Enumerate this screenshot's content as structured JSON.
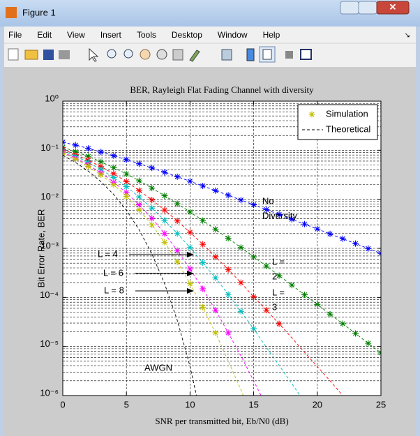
{
  "window": {
    "title": "Figure 1",
    "menu": [
      "File",
      "Edit",
      "View",
      "Insert",
      "Tools",
      "Desktop",
      "Window",
      "Help"
    ]
  },
  "chart_data": {
    "type": "line",
    "title": "BER, Rayleigh Flat Fading Channel with diversity",
    "xlabel": "SNR per transmitted bit, Eb/N0 (dB)",
    "ylabel": "Bit Error Rate, BER",
    "x": [
      0,
      1,
      2,
      3,
      4,
      5,
      6,
      7,
      8,
      9,
      10,
      11,
      12,
      13,
      14,
      15,
      16,
      17,
      18,
      19,
      20,
      21,
      22,
      23,
      24,
      25
    ],
    "xlim": [
      0,
      25
    ],
    "xticks": [
      0,
      5,
      10,
      15,
      20,
      25
    ],
    "ylim": [
      1e-06,
      1
    ],
    "log_y": true,
    "grid": true,
    "minor_grid": true,
    "yticks": [
      {
        "value": 1,
        "label": "10⁰"
      },
      {
        "value": 0.1,
        "label": "10⁻¹"
      },
      {
        "value": 0.01,
        "label": "10⁻²"
      },
      {
        "value": 0.001,
        "label": "10⁻³"
      },
      {
        "value": 0.0001,
        "label": "10⁻⁴"
      },
      {
        "value": 1e-05,
        "label": "10⁻⁵"
      },
      {
        "value": 1e-06,
        "label": "10⁻⁶"
      }
    ],
    "legend": {
      "position": "upper right",
      "entries": [
        {
          "label": "Simulation",
          "color": "#bfbf00",
          "style": "marker"
        },
        {
          "label": "Theoretical",
          "color": "#000000",
          "style": "dashed"
        }
      ]
    },
    "series": [
      {
        "color": "#0000ff",
        "theory": [
          0.146,
          0.127,
          0.109,
          0.0919,
          0.0771,
          0.0642,
          0.053,
          0.0435,
          0.0355,
          0.0288,
          0.0233,
          0.0187,
          0.015,
          0.0121,
          0.00966,
          0.00772,
          0.00616,
          0.00491,
          0.00391,
          0.00312,
          0.00248,
          0.00197,
          0.00157,
          0.00125,
          0.00099,
          0.00079
        ],
        "simulation": [
          0.146,
          0.127,
          0.109,
          0.0919,
          0.0771,
          0.0642,
          0.053,
          0.0435,
          0.0355,
          0.0288,
          0.0233,
          0.0187,
          0.015,
          0.0121,
          0.00966,
          0.00772,
          0.00616,
          0.00491,
          0.00391,
          0.00312,
          0.00248,
          0.00197,
          0.00157,
          0.00125,
          0.00099,
          0.00079
        ]
      },
      {
        "color": "#008000",
        "theory": [
          0.115,
          0.0937,
          0.0747,
          0.058,
          0.0441,
          0.0328,
          0.0238,
          0.0169,
          0.0118,
          0.00813,
          0.00551,
          0.00369,
          0.00244,
          0.0016,
          0.00104,
          0.000668,
          0.000436,
          0.000278,
          0.000178,
          0.000113,
          7.21e-05,
          4.57e-05,
          2.91e-05,
          1.84e-05,
          1.16e-05,
          7.4e-06
        ],
        "simulation": [
          0.115,
          0.0937,
          0.0747,
          0.058,
          0.0441,
          0.0328,
          0.0238,
          0.0169,
          0.0118,
          0.00813,
          0.00551,
          0.00369,
          0.00244,
          0.0016,
          0.00104,
          0.000668,
          0.000436,
          0.000278,
          0.000178,
          0.000113,
          7.21e-05,
          4.57e-05,
          2.91e-05,
          1.84e-05,
          1.16e-05,
          7.4e-06
        ]
      },
      {
        "color": "#ff0000",
        "theory": [
          0.1035,
          0.0819,
          0.0626,
          0.0464,
          0.0331,
          0.0228,
          0.0151,
          0.0097,
          0.00603,
          0.00362,
          0.00212,
          0.00121,
          0.00067,
          0.00037,
          0.0002,
          0.000103,
          5.5e-05,
          2.9e-05,
          1.5e-05,
          7.6e-06,
          3.9e-06,
          2e-06,
          1e-06,
          null,
          null,
          null
        ],
        "simulation": [
          0.1035,
          0.0819,
          0.0626,
          0.0464,
          0.0331,
          0.0228,
          0.0151,
          0.0097,
          0.00603,
          0.00362,
          0.00212,
          0.00121,
          0.00067,
          0.00037,
          0.0002,
          0.000103,
          5.5e-05,
          2.9e-05,
          null,
          null,
          null,
          null,
          null,
          null,
          null,
          null
        ]
      },
      {
        "color": "#00bfbf",
        "theory": [
          0.0975,
          0.0757,
          0.0564,
          0.0404,
          0.0277,
          0.0181,
          0.0112,
          0.0066,
          0.0037,
          0.002,
          0.00104,
          0.00051,
          0.00025,
          0.000115,
          5.2e-05,
          2.3e-05,
          9.6e-06,
          4.1e-06,
          1.75e-06,
          7.3e-07,
          null,
          null,
          null,
          null,
          null,
          null
        ],
        "simulation": [
          0.0975,
          0.0757,
          0.0564,
          0.0404,
          0.0277,
          0.0181,
          0.0112,
          0.0066,
          0.0037,
          0.002,
          0.00104,
          0.00051,
          0.00025,
          0.000115,
          5.2e-05,
          2.3e-05,
          null,
          null,
          null,
          null,
          null,
          null,
          null,
          null,
          null,
          null
        ]
      },
      {
        "color": "#ff00ff",
        "theory": [
          0.0914,
          0.0693,
          0.0501,
          0.0345,
          0.0223,
          0.0136,
          0.0077,
          0.0041,
          0.002,
          0.0009,
          0.00038,
          0.00015,
          5.5e-05,
          1.9e-05,
          6.4e-06,
          2e-06,
          6e-07,
          null,
          null,
          null,
          null,
          null,
          null,
          null,
          null,
          null
        ],
        "simulation": [
          0.0914,
          0.0693,
          0.0501,
          0.0345,
          0.0223,
          0.0136,
          0.0077,
          0.0041,
          0.002,
          0.0009,
          0.00038,
          0.00015,
          5.5e-05,
          1.9e-05,
          null,
          null,
          null,
          null,
          null,
          null,
          null,
          null,
          null,
          null,
          null,
          null
        ]
      },
      {
        "color": "#bfbf00",
        "theory": [
          0.0882,
          0.066,
          0.047,
          0.0315,
          0.0198,
          0.0115,
          0.0061,
          0.003,
          0.00133,
          0.00053,
          0.00019,
          6.3e-05,
          1.9e-05,
          5.1e-06,
          1.3e-06,
          3e-07,
          null,
          null,
          null,
          null,
          null,
          null,
          null,
          null,
          null,
          null
        ],
        "simulation": [
          0.0882,
          0.066,
          0.047,
          0.0315,
          0.0198,
          0.0115,
          0.0061,
          0.003,
          0.00133,
          0.00053,
          0.00019,
          6.3e-05,
          1.9e-05,
          null,
          null,
          null,
          null,
          null,
          null,
          null,
          null,
          null,
          null,
          null,
          null,
          null
        ]
      },
      {
        "color": "#000000",
        "theory": [
          0.0786,
          0.0563,
          0.0375,
          0.0229,
          0.0125,
          0.00595,
          0.00239,
          0.00077,
          0.00019,
          3.4e-05,
          3.9e-06,
          2.6e-07,
          null,
          null,
          null,
          null,
          null,
          null,
          null,
          null,
          null,
          null,
          null,
          null,
          null,
          null
        ]
      }
    ],
    "annotations": [
      {
        "lines": [
          "No",
          "Diversity"
        ]
      },
      {
        "lines": [
          "L =",
          "2"
        ]
      },
      {
        "lines": [
          "L =",
          "3"
        ]
      },
      {
        "lines": [
          "L = 4"
        ]
      },
      {
        "lines": [
          "L = 6"
        ]
      },
      {
        "lines": [
          "L = 8"
        ]
      },
      {
        "lines": [
          "AWGN"
        ]
      }
    ]
  }
}
